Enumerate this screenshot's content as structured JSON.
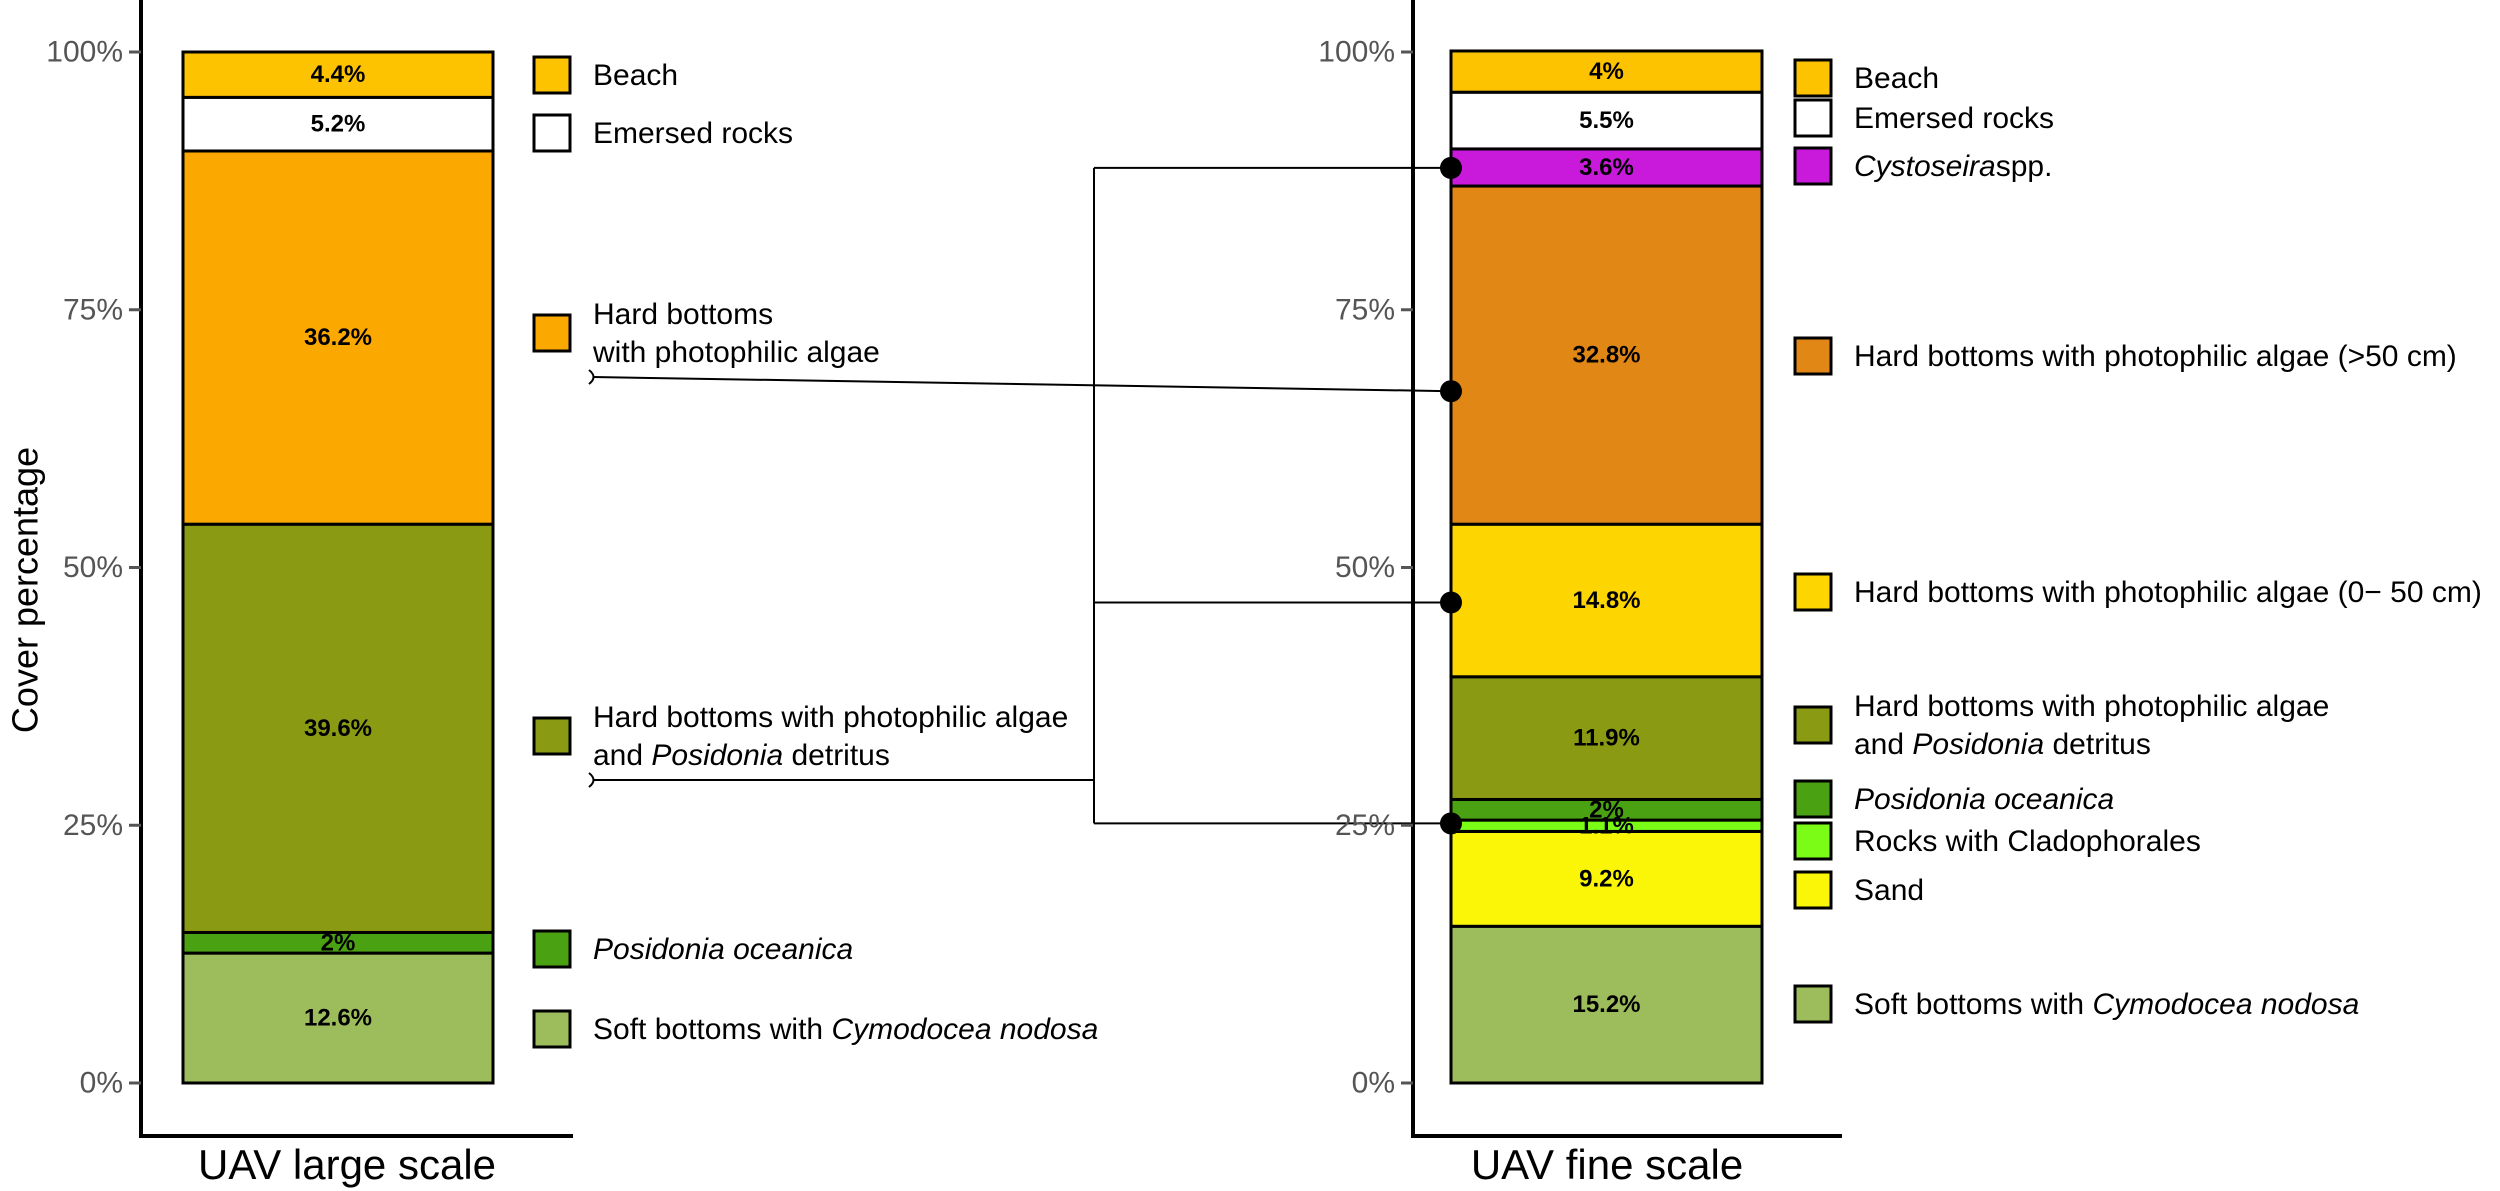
{
  "chart_data": {
    "type": "stacked-bar",
    "ylabel": "Cover percentage",
    "ylim": [
      0,
      100
    ],
    "yticks": [
      "0%",
      "25%",
      "50%",
      "75%",
      "100%"
    ],
    "panels": [
      {
        "xlabel": "UAV large scale",
        "segments": [
          {
            "label": "Soft bottoms with Cymodocea nodosa",
            "legend": [
              {
                "t": "Soft bottoms with "
              },
              {
                "t": "Cymodocea nodosa",
                "i": true
              }
            ],
            "value": 12.6,
            "text": "12.6%",
            "color": "#9dbd5c"
          },
          {
            "label": "Posidonia oceanica",
            "legend": [
              {
                "t": "Posidonia oceanica",
                "i": true
              }
            ],
            "value": 2.0,
            "text": "2%",
            "color": "#4aa212"
          },
          {
            "label": "Hard bottoms with photophilic algae and Posidonia detritus",
            "legend": [
              {
                "t": "Hard bottoms with photophilic algae"
              },
              {
                "br": true
              },
              {
                "t": "and "
              },
              {
                "t": "Posidonia",
                "i": true
              },
              {
                "t": " detritus"
              }
            ],
            "value": 39.6,
            "text": "39.6%",
            "color": "#8a9a13"
          },
          {
            "label": "Hard bottoms with photophilic algae",
            "legend": [
              {
                "t": "Hard bottoms"
              },
              {
                "br": true
              },
              {
                "t": "with photophilic algae"
              }
            ],
            "value": 36.2,
            "text": "36.2%",
            "color": "#fba800"
          },
          {
            "label": "Emersed rocks",
            "legend": [
              {
                "t": "Emersed rocks"
              }
            ],
            "value": 5.2,
            "text": "5.2%",
            "color": "#ffffff"
          },
          {
            "label": "Beach",
            "legend": [
              {
                "t": "Beach"
              }
            ],
            "value": 4.4,
            "text": "4.4%",
            "color": "#fec300"
          }
        ]
      },
      {
        "xlabel": "UAV fine scale",
        "segments": [
          {
            "label": "Soft bottoms with Cymodocea nodosa",
            "legend": [
              {
                "t": "Soft bottoms with "
              },
              {
                "t": "Cymodocea nodosa",
                "i": true
              }
            ],
            "value": 15.2,
            "text": "15.2%",
            "color": "#9dbd5c"
          },
          {
            "label": "Sand",
            "legend": [
              {
                "t": "Sand"
              }
            ],
            "value": 9.2,
            "text": "9.2%",
            "color": "#fbf607"
          },
          {
            "label": "Rocks with Cladophorales",
            "legend": [
              {
                "t": "Rocks with Cladophorales"
              }
            ],
            "value": 1.1,
            "text": "1.1%",
            "color": "#7bfc17"
          },
          {
            "label": "Posidonia oceanica",
            "legend": [
              {
                "t": "Posidonia oceanica",
                "i": true
              }
            ],
            "value": 2.0,
            "text": "2%",
            "color": "#4aa212"
          },
          {
            "label": "Hard bottoms with photophilic algae and Posidonia detritus",
            "legend": [
              {
                "t": "Hard bottoms with photophilic algae"
              },
              {
                "br": true
              },
              {
                "t": "and "
              },
              {
                "t": "Posidonia",
                "i": true
              },
              {
                "t": " detritus"
              }
            ],
            "value": 11.9,
            "text": "11.9%",
            "color": "#8a9a13"
          },
          {
            "label": "Hard bottoms with photophilic algae (0- 50 cm)",
            "legend": [
              {
                "t": "Hard bottoms with photophilic algae (0− 50 cm)"
              }
            ],
            "value": 14.8,
            "text": "14.8%",
            "color": "#fdd500"
          },
          {
            "label": "Hard bottoms with photophilic algae (>50 cm)",
            "legend": [
              {
                "t": "Hard bottoms with photophilic algae (>50 cm)"
              }
            ],
            "value": 32.8,
            "text": "32.8%",
            "color": "#e08716"
          },
          {
            "label": "Cystoseira spp.",
            "legend": [
              {
                "t": "Cystoseira",
                "i": true
              },
              {
                "t": "spp."
              }
            ],
            "value": 3.6,
            "text": "3.6%",
            "color": "#c91adc"
          },
          {
            "label": "Emersed rocks",
            "legend": [
              {
                "t": "Emersed rocks"
              }
            ],
            "value": 5.5,
            "text": "5.5%",
            "color": "#ffffff"
          },
          {
            "label": "Beach",
            "legend": [
              {
                "t": "Beach"
              }
            ],
            "value": 4.0,
            "text": "4%",
            "color": "#fec300"
          }
        ]
      }
    ],
    "connections": [
      {
        "from": "Hard bottoms with photophilic algae",
        "to": [
          "Hard bottoms with photophilic algae (>50 cm)"
        ]
      },
      {
        "from": "Hard bottoms with photophilic algae and Posidonia detritus",
        "to": [
          "Cystoseira spp.",
          "Hard bottoms with photophilic algae (0- 50 cm)",
          "Rocks with Cladophorales"
        ]
      }
    ]
  }
}
